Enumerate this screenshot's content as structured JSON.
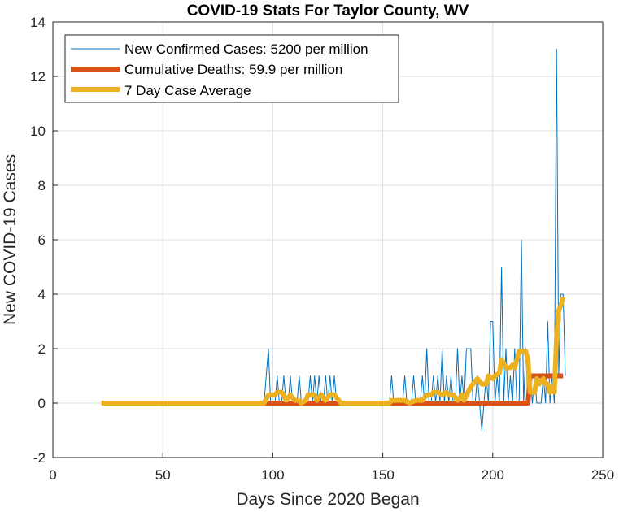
{
  "chart_data": {
    "type": "line",
    "title": "COVID-19 Stats For Taylor County, WV",
    "xlabel": "Days Since 2020 Began",
    "ylabel": "New COVID-19 Cases",
    "xlim": [
      0,
      250
    ],
    "ylim": [
      -2,
      14
    ],
    "xticks": [
      0,
      50,
      100,
      150,
      200,
      250
    ],
    "yticks": [
      -2,
      0,
      2,
      4,
      6,
      8,
      10,
      12,
      14
    ],
    "grid": true,
    "legend_position": "top-left",
    "series": [
      {
        "name": "New Confirmed Cases: 5200 per million",
        "color": "#0072BD",
        "width": "thin",
        "points": [
          [
            22,
            0
          ],
          [
            96,
            0
          ],
          [
            98,
            2
          ],
          [
            99,
            0
          ],
          [
            101,
            0
          ],
          [
            102,
            1
          ],
          [
            103,
            0
          ],
          [
            104,
            0
          ],
          [
            105,
            1
          ],
          [
            106,
            0
          ],
          [
            107,
            0
          ],
          [
            108,
            1
          ],
          [
            109,
            0
          ],
          [
            110,
            0
          ],
          [
            111,
            0
          ],
          [
            112,
            1
          ],
          [
            113,
            0
          ],
          [
            114,
            0
          ],
          [
            115,
            0
          ],
          [
            116,
            0
          ],
          [
            117,
            1
          ],
          [
            118,
            0
          ],
          [
            119,
            1
          ],
          [
            120,
            0
          ],
          [
            121,
            1
          ],
          [
            122,
            0
          ],
          [
            123,
            0
          ],
          [
            124,
            1
          ],
          [
            125,
            0
          ],
          [
            126,
            1
          ],
          [
            127,
            0
          ],
          [
            128,
            1
          ],
          [
            129,
            0
          ],
          [
            130,
            0
          ],
          [
            131,
            0
          ],
          [
            153,
            0
          ],
          [
            154,
            1
          ],
          [
            155,
            0
          ],
          [
            158,
            0
          ],
          [
            159,
            0
          ],
          [
            160,
            1
          ],
          [
            161,
            0
          ],
          [
            163,
            0
          ],
          [
            164,
            1
          ],
          [
            165,
            0
          ],
          [
            167,
            0
          ],
          [
            168,
            1
          ],
          [
            169,
            0
          ],
          [
            170,
            2
          ],
          [
            171,
            0
          ],
          [
            172,
            0
          ],
          [
            173,
            1
          ],
          [
            174,
            0
          ],
          [
            175,
            1
          ],
          [
            176,
            0
          ],
          [
            177,
            2
          ],
          [
            178,
            0
          ],
          [
            179,
            1
          ],
          [
            180,
            0
          ],
          [
            181,
            1
          ],
          [
            182,
            0
          ],
          [
            183,
            0
          ],
          [
            184,
            2
          ],
          [
            185,
            0
          ],
          [
            186,
            1
          ],
          [
            187,
            0
          ],
          [
            188,
            2
          ],
          [
            189,
            2
          ],
          [
            190,
            2
          ],
          [
            191,
            0
          ],
          [
            192,
            0
          ],
          [
            193,
            1
          ],
          [
            194,
            0
          ],
          [
            195,
            -1
          ],
          [
            196,
            0
          ],
          [
            197,
            1
          ],
          [
            198,
            0
          ],
          [
            199,
            3
          ],
          [
            200,
            3
          ],
          [
            201,
            0
          ],
          [
            202,
            1
          ],
          [
            203,
            0
          ],
          [
            204,
            5
          ],
          [
            205,
            0
          ],
          [
            206,
            2
          ],
          [
            207,
            0
          ],
          [
            208,
            1
          ],
          [
            209,
            0
          ],
          [
            210,
            2
          ],
          [
            211,
            0
          ],
          [
            212,
            0
          ],
          [
            213,
            6
          ],
          [
            214,
            0
          ],
          [
            215,
            2
          ],
          [
            216,
            0
          ],
          [
            217,
            1
          ],
          [
            218,
            0
          ],
          [
            219,
            1
          ],
          [
            220,
            0
          ],
          [
            221,
            0
          ],
          [
            222,
            0
          ],
          [
            223,
            1
          ],
          [
            224,
            0
          ],
          [
            225,
            3
          ],
          [
            226,
            0
          ],
          [
            227,
            1
          ],
          [
            228,
            0
          ],
          [
            229,
            13
          ],
          [
            230,
            1
          ],
          [
            231,
            4
          ],
          [
            232,
            4
          ],
          [
            233,
            1
          ]
        ]
      },
      {
        "name": "Cumulative Deaths: 59.9 per million",
        "color": "#D95319",
        "width": "thick",
        "points": [
          [
            96,
            0
          ],
          [
            216,
            0
          ],
          [
            217,
            1
          ],
          [
            232,
            1
          ]
        ]
      },
      {
        "name": "7 Day Case Average",
        "color": "#EDB120",
        "width": "thick",
        "points": [
          [
            22,
            0
          ],
          [
            96,
            0
          ],
          [
            98,
            0.3
          ],
          [
            99,
            0.3
          ],
          [
            101,
            0.3
          ],
          [
            102,
            0.4
          ],
          [
            104,
            0.4
          ],
          [
            105,
            0.3
          ],
          [
            106,
            0.1
          ],
          [
            108,
            0.3
          ],
          [
            110,
            0.1
          ],
          [
            112,
            0.1
          ],
          [
            113,
            0
          ],
          [
            115,
            0.1
          ],
          [
            116,
            0.3
          ],
          [
            119,
            0.3
          ],
          [
            120,
            0.1
          ],
          [
            122,
            0.3
          ],
          [
            124,
            0.1
          ],
          [
            126,
            0.3
          ],
          [
            128,
            0.3
          ],
          [
            130,
            0.1
          ],
          [
            131,
            0
          ],
          [
            153,
            0
          ],
          [
            154,
            0.1
          ],
          [
            158,
            0.1
          ],
          [
            160,
            0.1
          ],
          [
            162,
            0
          ],
          [
            165,
            0.1
          ],
          [
            168,
            0.1
          ],
          [
            170,
            0.3
          ],
          [
            172,
            0.3
          ],
          [
            173,
            0.4
          ],
          [
            175,
            0.4
          ],
          [
            177,
            0.3
          ],
          [
            179,
            0.4
          ],
          [
            180,
            0.3
          ],
          [
            182,
            0.3
          ],
          [
            184,
            0.1
          ],
          [
            186,
            0.3
          ],
          [
            187,
            0.1
          ],
          [
            188,
            0.3
          ],
          [
            190,
            0.6
          ],
          [
            191,
            0.7
          ],
          [
            193,
            0.9
          ],
          [
            195,
            0.7
          ],
          [
            197,
            0.7
          ],
          [
            198,
            1
          ],
          [
            200,
            0.9
          ],
          [
            201,
            1
          ],
          [
            203,
            1.1
          ],
          [
            204,
            1.6
          ],
          [
            206,
            1.3
          ],
          [
            208,
            1.3
          ],
          [
            209,
            1.4
          ],
          [
            210,
            1.3
          ],
          [
            212,
            1.9
          ],
          [
            214,
            1.9
          ],
          [
            215,
            1.9
          ],
          [
            216,
            1.6
          ],
          [
            217,
            0.4
          ],
          [
            219,
            0.4
          ],
          [
            220,
            0.9
          ],
          [
            221,
            0.7
          ],
          [
            223,
            0.9
          ],
          [
            224,
            0.7
          ],
          [
            225,
            0.7
          ],
          [
            226,
            0.4
          ],
          [
            227,
            0.6
          ],
          [
            228,
            0.4
          ],
          [
            229,
            2.4
          ],
          [
            230,
            3.4
          ],
          [
            231,
            3.6
          ],
          [
            232,
            3.9
          ]
        ]
      }
    ]
  }
}
